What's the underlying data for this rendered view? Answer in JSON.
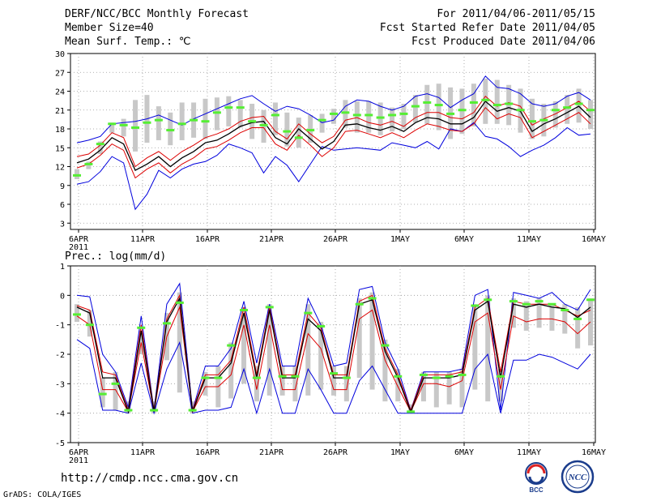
{
  "header": {
    "title": "DERF/NCC/BCC Monthly Forecast",
    "member_size": "Member Size=40",
    "variable": "Mean Surf. Temp.: ℃",
    "period": "For 2011/04/06-2011/05/15",
    "started": "Fcst Started Refer Date 2011/04/05",
    "produced": "Fcst Produced Date 2011/04/06"
  },
  "footer": {
    "url": "http://cmdp.ncc.cma.gov.cn",
    "grads": "GrADS: COLA/IGES",
    "logo_left": "BCC",
    "logo_right": "NCC"
  },
  "colors": {
    "max_min": "#0000dd",
    "spread": "#dd0000",
    "mean": "#000000",
    "obs_box": "#c8c8c8",
    "marker": "#55ee33"
  },
  "chart_data": [
    {
      "type": "line",
      "title": "Mean Surf. Temp.: ℃",
      "ylim": [
        2,
        30
      ],
      "yticks": [
        "3",
        "6",
        "9",
        "12",
        "15",
        "18",
        "21",
        "24",
        "27",
        "30"
      ],
      "xticks": [
        "6APR",
        "11APR",
        "16APR",
        "21APR",
        "26APR",
        "1MAY",
        "6MAY",
        "11MAY",
        "16MAY"
      ],
      "xtick_sub": "2011",
      "series": [
        {
          "name": "max",
          "color": "#0000dd",
          "values": [
            15.8,
            16.2,
            16.8,
            18.8,
            19.0,
            19.2,
            19.6,
            20.2,
            19.4,
            18.6,
            19.6,
            20.4,
            21.2,
            22.0,
            22.8,
            23.3,
            22.0,
            20.8,
            21.6,
            21.2,
            20.2,
            19.0,
            19.4,
            21.6,
            22.6,
            22.4,
            21.6,
            21.0,
            21.6,
            23.2,
            23.6,
            23.0,
            21.4,
            22.6,
            23.6,
            26.4,
            24.6,
            24.4,
            23.6,
            22.0,
            21.6,
            22.0,
            23.2,
            23.8,
            22.6
          ]
        },
        {
          "name": "upper",
          "color": "#dd0000",
          "values": [
            13.6,
            14.0,
            15.4,
            17.4,
            16.6,
            12.0,
            13.4,
            14.4,
            13.0,
            14.4,
            15.4,
            16.6,
            17.2,
            18.0,
            19.2,
            19.8,
            20.0,
            17.6,
            16.4,
            18.8,
            17.2,
            15.8,
            16.8,
            19.4,
            19.8,
            19.0,
            18.6,
            19.2,
            18.4,
            19.8,
            20.6,
            20.6,
            19.8,
            19.6,
            20.6,
            23.2,
            21.6,
            22.2,
            21.6,
            18.6,
            19.6,
            20.4,
            21.4,
            22.4,
            20.8
          ]
        },
        {
          "name": "mean",
          "color": "#000000",
          "values": [
            12.6,
            13.2,
            14.6,
            16.6,
            15.6,
            11.4,
            12.4,
            13.6,
            12.0,
            13.4,
            14.4,
            15.8,
            16.2,
            17.2,
            18.4,
            19.0,
            19.2,
            16.6,
            15.6,
            18.0,
            16.4,
            14.8,
            16.0,
            18.6,
            18.8,
            18.2,
            17.8,
            18.4,
            17.6,
            19.0,
            19.8,
            19.6,
            18.8,
            18.8,
            19.8,
            22.4,
            20.8,
            21.4,
            20.8,
            17.6,
            18.8,
            19.6,
            20.6,
            21.6,
            19.8
          ]
        },
        {
          "name": "lower",
          "color": "#dd0000",
          "values": [
            11.8,
            12.4,
            13.8,
            15.6,
            14.6,
            10.2,
            11.6,
            12.6,
            11.0,
            12.4,
            13.4,
            14.8,
            15.2,
            16.2,
            17.4,
            18.2,
            18.2,
            15.6,
            14.6,
            17.0,
            15.4,
            13.6,
            15.0,
            17.6,
            17.8,
            17.2,
            16.6,
            17.4,
            16.6,
            17.8,
            18.8,
            18.4,
            17.8,
            17.6,
            18.8,
            21.4,
            19.6,
            20.4,
            19.8,
            16.6,
            17.6,
            18.6,
            19.6,
            20.6,
            18.8
          ]
        },
        {
          "name": "min",
          "color": "#0000dd",
          "values": [
            9.2,
            9.6,
            11.2,
            13.6,
            12.6,
            5.2,
            7.6,
            11.4,
            10.2,
            11.6,
            12.4,
            12.8,
            13.8,
            15.6,
            15.0,
            14.2,
            11.0,
            13.6,
            12.2,
            9.6,
            12.4,
            15.2,
            14.6,
            14.8,
            15.0,
            14.8,
            14.6,
            15.8,
            15.4,
            15.0,
            16.0,
            14.8,
            18.0,
            17.6,
            19.0,
            16.8,
            16.4,
            15.2,
            13.6,
            14.6,
            15.4,
            16.6,
            18.2,
            17.0,
            17.2
          ]
        },
        {
          "name": "obs",
          "color": "#55ee33",
          "values": [
            10.6,
            12.4,
            15.6,
            18.8,
            18.6,
            18.2,
            19.0,
            19.4,
            17.8,
            18.8,
            19.4,
            19.2,
            20.6,
            21.4,
            21.4,
            19.2,
            18.6,
            20.2,
            17.6,
            16.6,
            17.8,
            19.4,
            20.4,
            20.6,
            20.2,
            20.2,
            19.8,
            20.2,
            20.4,
            21.6,
            22.2,
            21.8,
            20.4,
            21.0,
            22.2,
            22.6,
            21.8,
            22.0,
            21.0,
            19.2,
            19.4,
            21.0,
            21.4,
            22.0,
            21.0
          ]
        },
        {
          "name": "box_high",
          "color": "#c8c8c8",
          "values": [
            11.6,
            12.8,
            16.0,
            19.0,
            19.6,
            22.6,
            23.4,
            21.6,
            20.6,
            22.2,
            22.2,
            22.8,
            23.0,
            23.2,
            22.6,
            22.0,
            21.0,
            22.2,
            20.6,
            19.8,
            20.2,
            20.4,
            21.2,
            22.6,
            22.4,
            22.4,
            22.2,
            21.4,
            22.0,
            23.4,
            25.0,
            25.2,
            24.6,
            24.4,
            25.2,
            26.0,
            25.8,
            25.0,
            24.4,
            22.8,
            22.0,
            22.4,
            23.4,
            24.4,
            22.6
          ]
        },
        {
          "name": "box_low",
          "color": "#c8c8c8",
          "values": [
            10.0,
            11.6,
            14.0,
            17.4,
            16.8,
            14.4,
            15.8,
            16.2,
            15.4,
            16.2,
            16.6,
            16.4,
            17.8,
            18.4,
            18.2,
            16.4,
            15.8,
            17.0,
            15.2,
            15.0,
            15.8,
            17.4,
            18.8,
            18.2,
            17.4,
            17.4,
            17.0,
            17.6,
            18.0,
            19.0,
            18.8,
            17.8,
            16.4,
            17.2,
            18.4,
            18.8,
            18.8,
            18.6,
            17.4,
            16.4,
            16.8,
            18.2,
            18.8,
            19.0,
            18.0
          ]
        }
      ]
    },
    {
      "type": "line",
      "title": "Prec.: log(mm/d)",
      "ylim": [
        -5,
        1
      ],
      "yticks": [
        "-5",
        "-4",
        "-3",
        "-2",
        "-1",
        "0",
        "1"
      ],
      "xticks": [
        "6APR",
        "11APR",
        "16APR",
        "21APR",
        "26APR",
        "1MAY",
        "6MAY",
        "11MAY",
        "16MAY"
      ],
      "xtick_sub": "2011",
      "series": [
        {
          "name": "max",
          "color": "#0000dd",
          "values": [
            0.0,
            -0.05,
            -2.0,
            -2.6,
            -3.8,
            -0.7,
            -3.9,
            -0.3,
            0.4,
            -3.9,
            -2.4,
            -2.4,
            -1.8,
            -0.2,
            -2.3,
            -0.3,
            -2.4,
            -2.4,
            -0.1,
            -1.0,
            -2.4,
            -2.3,
            0.2,
            0.3,
            -1.6,
            -2.5,
            -3.9,
            -2.6,
            -2.6,
            -2.6,
            -2.5,
            0.0,
            0.2,
            -3.9,
            0.1,
            0.0,
            -0.1,
            0.1,
            -0.3,
            -0.5,
            0.2
          ]
        },
        {
          "name": "upper",
          "color": "#dd0000",
          "values": [
            -0.35,
            -0.5,
            -2.6,
            -2.7,
            -3.9,
            -1.0,
            -3.9,
            -0.8,
            0.0,
            -3.9,
            -2.7,
            -2.7,
            -2.2,
            -0.4,
            -2.7,
            -0.4,
            -2.7,
            -2.7,
            -0.6,
            -1.1,
            -2.7,
            -2.7,
            -0.2,
            0.0,
            -1.8,
            -2.7,
            -3.9,
            -2.7,
            -2.7,
            -2.7,
            -2.6,
            -0.4,
            -0.1,
            -2.6,
            -0.2,
            -0.3,
            -0.3,
            -0.3,
            -0.5,
            -0.7,
            -0.5
          ]
        },
        {
          "name": "mean",
          "color": "#000000",
          "values": [
            -0.4,
            -0.6,
            -2.8,
            -2.8,
            -3.95,
            -1.2,
            -3.95,
            -0.9,
            -0.1,
            -3.95,
            -2.8,
            -2.8,
            -2.3,
            -0.6,
            -2.8,
            -0.5,
            -2.8,
            -2.8,
            -0.8,
            -1.2,
            -2.8,
            -2.8,
            -0.3,
            -0.15,
            -1.9,
            -2.8,
            -3.95,
            -2.8,
            -2.8,
            -2.8,
            -2.7,
            -0.5,
            -0.2,
            -2.8,
            -0.3,
            -0.4,
            -0.3,
            -0.4,
            -0.45,
            -0.75,
            -0.4
          ]
        },
        {
          "name": "lower",
          "color": "#dd0000",
          "values": [
            -0.7,
            -1.0,
            -3.2,
            -3.2,
            -3.95,
            -1.6,
            -3.95,
            -1.4,
            -0.4,
            -3.95,
            -3.1,
            -3.1,
            -2.7,
            -1.0,
            -3.2,
            -1.0,
            -3.2,
            -3.2,
            -1.3,
            -1.8,
            -3.2,
            -3.2,
            -0.8,
            -0.5,
            -2.2,
            -3.1,
            -3.95,
            -3.0,
            -3.0,
            -3.1,
            -2.9,
            -0.9,
            -0.6,
            -3.2,
            -0.7,
            -0.9,
            -0.8,
            -0.8,
            -0.9,
            -1.3,
            -0.9
          ]
        },
        {
          "name": "min",
          "color": "#0000dd",
          "values": [
            -1.5,
            -1.8,
            -3.9,
            -3.9,
            -4.0,
            -2.3,
            -4.0,
            -2.5,
            -1.6,
            -4.0,
            -3.9,
            -3.9,
            -3.8,
            -2.5,
            -4.0,
            -2.5,
            -4.0,
            -4.0,
            -2.5,
            -3.2,
            -4.0,
            -4.0,
            -2.9,
            -2.4,
            -3.2,
            -4.0,
            -4.0,
            -4.0,
            -4.0,
            -4.0,
            -4.0,
            -2.5,
            -2.0,
            -4.0,
            -2.2,
            -2.2,
            -2.0,
            -2.1,
            -2.3,
            -2.5,
            -2.0
          ]
        },
        {
          "name": "obs",
          "color": "#55ee33",
          "values": [
            -0.65,
            -1.0,
            -3.35,
            -3.0,
            -3.9,
            -1.1,
            -3.9,
            -0.95,
            -0.25,
            -3.9,
            -2.8,
            -2.8,
            -1.7,
            -0.5,
            -2.8,
            -0.4,
            -2.75,
            -2.75,
            -0.6,
            -1.05,
            -2.65,
            -2.8,
            -0.3,
            -0.1,
            -1.7,
            -2.75,
            -3.95,
            -2.7,
            -2.8,
            -2.75,
            -2.7,
            -0.35,
            -0.15,
            -2.75,
            -0.2,
            -0.3,
            -0.2,
            -0.3,
            -0.5,
            -0.8,
            -0.15
          ]
        },
        {
          "name": "box_high",
          "color": "#c8c8c8",
          "values": [
            -0.3,
            -0.5,
            -2.8,
            -2.6,
            -3.6,
            -1.2,
            -3.6,
            -0.6,
            0.1,
            -3.6,
            -2.6,
            -2.4,
            -1.6,
            -0.4,
            -2.4,
            -0.3,
            -2.4,
            -2.4,
            -0.3,
            -0.9,
            -2.4,
            -2.4,
            -0.1,
            0.1,
            -1.5,
            -2.5,
            -3.7,
            -2.6,
            -2.6,
            -2.6,
            -2.5,
            -0.3,
            0.0,
            -2.5,
            -0.1,
            -0.2,
            -0.1,
            -0.3,
            -0.3,
            -0.4,
            -0.1
          ]
        },
        {
          "name": "box_low",
          "color": "#c8c8c8",
          "values": [
            -0.9,
            -1.4,
            -3.8,
            -3.9,
            -4.0,
            -2.0,
            -4.0,
            -2.2,
            -3.3,
            -4.0,
            -3.4,
            -3.8,
            -3.5,
            -3.0,
            -3.6,
            -3.4,
            -3.4,
            -3.6,
            -3.4,
            -3.2,
            -3.4,
            -3.6,
            -2.8,
            -3.2,
            -3.6,
            -3.6,
            -4.0,
            -3.6,
            -3.8,
            -3.7,
            -3.8,
            -3.2,
            -3.6,
            -3.6,
            -1.1,
            -1.2,
            -1.1,
            -1.2,
            -1.3,
            -1.8,
            -1.7
          ]
        }
      ]
    }
  ]
}
